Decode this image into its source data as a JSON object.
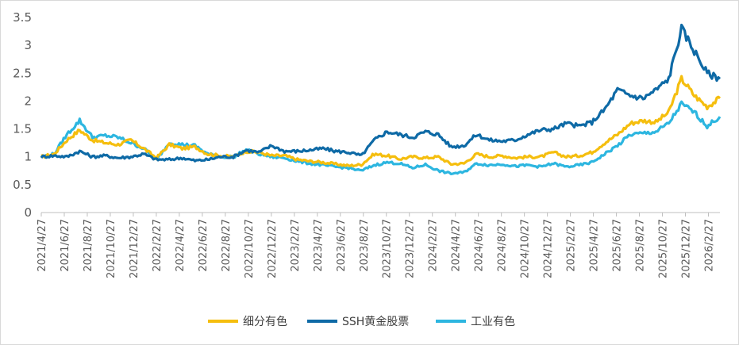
{
  "chart_data": {
    "type": "line",
    "title": "",
    "xlabel": "",
    "ylabel": "",
    "ylim": [
      0,
      3.5
    ],
    "yticks": [
      "0",
      "0.5",
      "1",
      "1.5",
      "2",
      "2.5",
      "3",
      "3.5"
    ],
    "xticks": [
      "2021/4/27",
      "2021/6/27",
      "2021/8/27",
      "2021/10/27",
      "2021/12/27",
      "2022/2/27",
      "2022/4/27",
      "2022/6/27",
      "2022/8/27",
      "2022/10/27",
      "2022/12/27",
      "2023/2/27",
      "2023/4/27",
      "2023/6/27",
      "2023/8/27",
      "2023/10/27",
      "2023/12/27",
      "2024/2/27",
      "2024/4/27",
      "2024/6/27",
      "2024/8/27",
      "2024/10/27",
      "2024/12/27",
      "2025/2/27",
      "2025/4/27",
      "2025/6/27",
      "2025/8/27",
      "2025/10/27",
      "2025/12/27",
      "2026/2/27"
    ],
    "legend_position": "bottom",
    "series": [
      {
        "name": "细分有色",
        "color": "#F5BE0E",
        "values": [
          1.0,
          1.05,
          1.3,
          1.48,
          1.3,
          1.25,
          1.22,
          1.3,
          1.15,
          0.98,
          1.22,
          1.15,
          1.18,
          1.05,
          1.02,
          1.0,
          1.1,
          1.08,
          1.02,
          1.02,
          0.95,
          0.92,
          0.9,
          0.87,
          0.84,
          0.86,
          1.05,
          1.02,
          0.96,
          1.0,
          0.98,
          1.0,
          0.87,
          0.88,
          1.05,
          1.0,
          1.02,
          0.98,
          1.0,
          1.0,
          1.08,
          1.0,
          1.02,
          1.08,
          1.25,
          1.4,
          1.6,
          1.65,
          1.62,
          1.8,
          2.4,
          2.1,
          1.9,
          2.05
        ]
      },
      {
        "name": "SSH黄金股票",
        "color": "#0E6AA6",
        "values": [
          1.0,
          1.02,
          1.0,
          1.1,
          1.0,
          1.02,
          0.98,
          1.0,
          1.05,
          0.95,
          0.95,
          0.98,
          0.93,
          0.95,
          1.0,
          1.0,
          1.12,
          1.08,
          1.2,
          1.1,
          1.1,
          1.12,
          1.15,
          1.1,
          1.08,
          1.02,
          1.3,
          1.45,
          1.4,
          1.35,
          1.45,
          1.4,
          1.18,
          1.2,
          1.4,
          1.3,
          1.28,
          1.3,
          1.4,
          1.48,
          1.5,
          1.6,
          1.55,
          1.62,
          1.85,
          2.2,
          2.1,
          2.05,
          2.2,
          2.4,
          3.3,
          2.9,
          2.5,
          2.4
        ]
      },
      {
        "name": "工业有色",
        "color": "#2DB6E0",
        "values": [
          1.0,
          1.05,
          1.4,
          1.65,
          1.35,
          1.38,
          1.35,
          1.25,
          1.15,
          0.95,
          1.25,
          1.22,
          1.2,
          1.05,
          1.0,
          1.0,
          1.12,
          1.05,
          1.0,
          0.98,
          0.92,
          0.88,
          0.85,
          0.82,
          0.8,
          0.75,
          0.85,
          0.9,
          0.88,
          0.8,
          0.86,
          0.75,
          0.7,
          0.72,
          0.88,
          0.85,
          0.87,
          0.83,
          0.85,
          0.82,
          0.88,
          0.82,
          0.85,
          0.9,
          1.05,
          1.2,
          1.4,
          1.42,
          1.45,
          1.6,
          1.95,
          1.8,
          1.55,
          1.72
        ]
      }
    ]
  }
}
